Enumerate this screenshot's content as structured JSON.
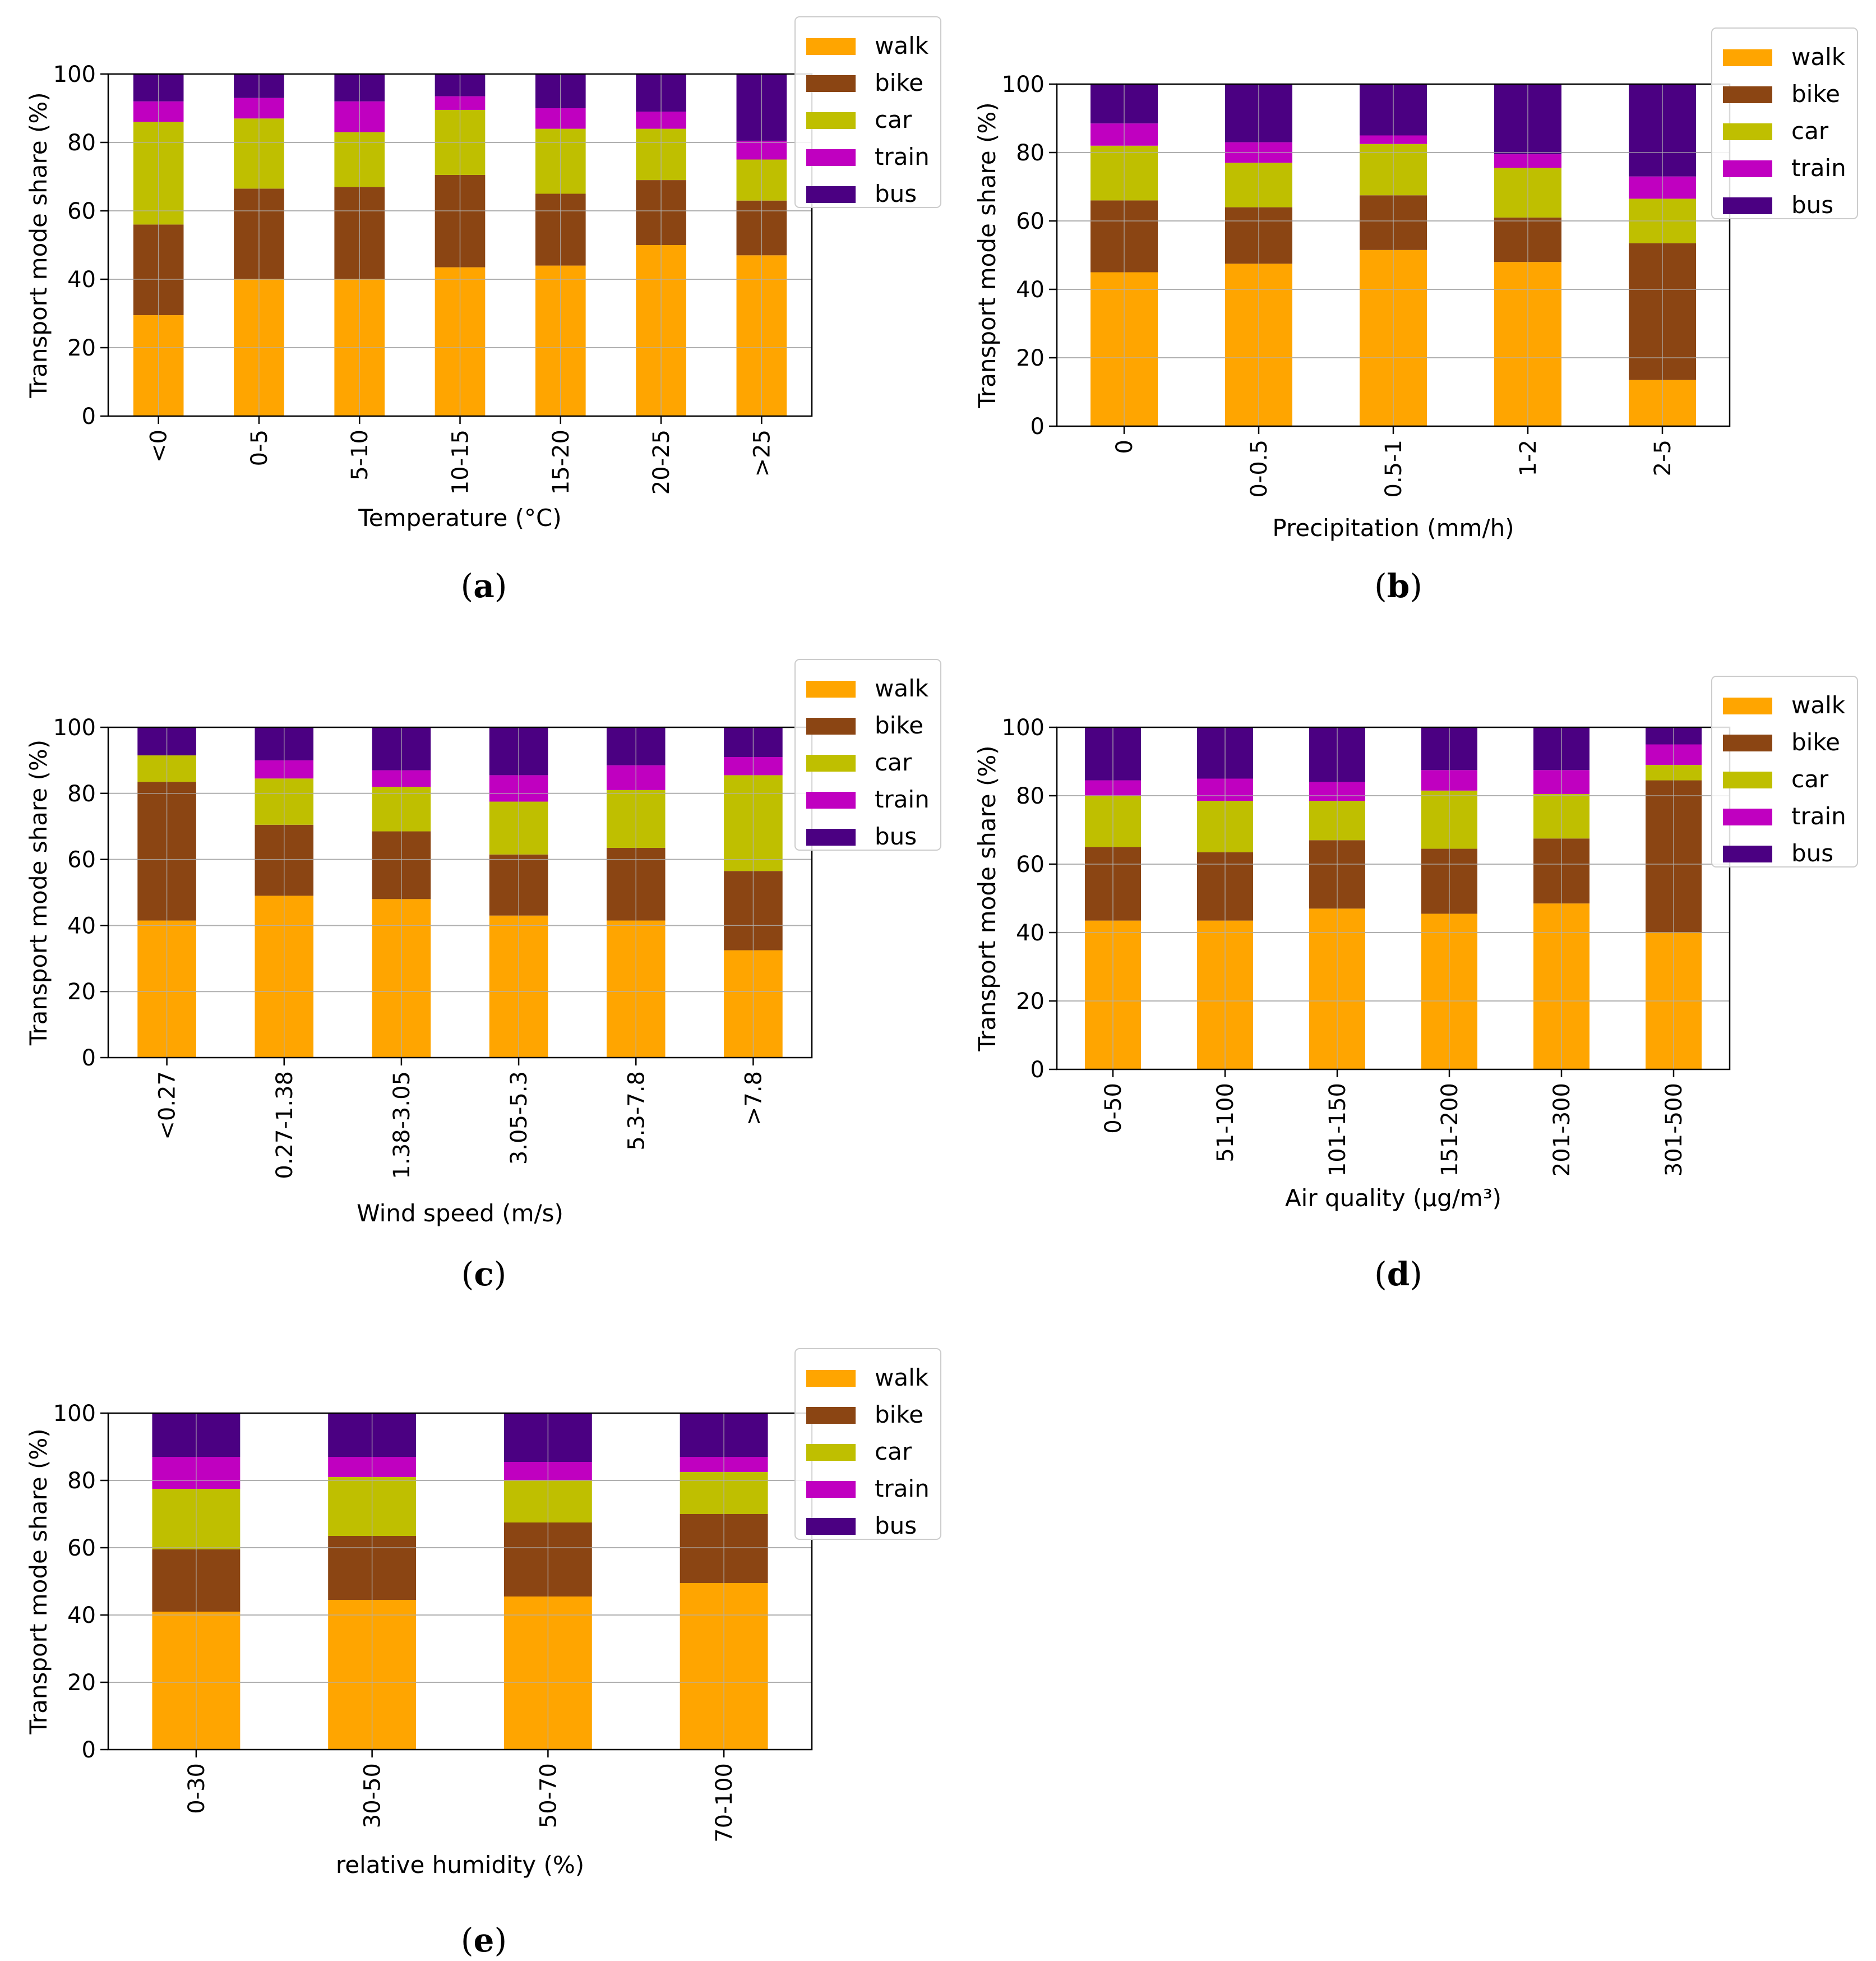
{
  "figure": {
    "modes": [
      "walk",
      "bike",
      "car",
      "train",
      "bus"
    ],
    "colors": {
      "walk": "#FFA500",
      "bike": "#8B4513",
      "car": "#BFBF00",
      "train": "#C000C0",
      "bus": "#4B0082"
    }
  },
  "chart_data": [
    {
      "id": "a",
      "caption": "a",
      "type": "bar",
      "stacked": true,
      "xlabel": "Temperature (°C)",
      "ylabel": "Transport mode share (%)",
      "ylim": [
        0,
        100
      ],
      "yticks": [
        "0",
        "20",
        "40",
        "60",
        "80",
        "100"
      ],
      "categories": [
        "<0",
        "0-5",
        "5-10",
        "10-15",
        "15-20",
        "20-25",
        ">25"
      ],
      "series": [
        {
          "name": "walk",
          "values": [
            29.5,
            40,
            40,
            43.5,
            44,
            50,
            47
          ]
        },
        {
          "name": "bike",
          "values": [
            26.5,
            26.5,
            27,
            27,
            21,
            19,
            16
          ]
        },
        {
          "name": "car",
          "values": [
            30,
            20.5,
            16,
            19,
            19,
            15,
            12
          ]
        },
        {
          "name": "train",
          "values": [
            6,
            6,
            9,
            4,
            6,
            5,
            5.5
          ]
        },
        {
          "name": "bus",
          "values": [
            8,
            7,
            8,
            6.5,
            10,
            11,
            19.5
          ]
        }
      ],
      "legend": "outside-right-top"
    },
    {
      "id": "b",
      "caption": "b",
      "type": "bar",
      "stacked": true,
      "xlabel": "Precipitation (mm/h)",
      "ylabel": "Transport mode share (%)",
      "ylim": [
        0,
        100
      ],
      "yticks": [
        "0",
        "20",
        "40",
        "60",
        "80",
        "100"
      ],
      "categories": [
        "0",
        "0-0.5",
        "0.5-1",
        "1-2",
        "2-5"
      ],
      "series": [
        {
          "name": "walk",
          "values": [
            45,
            47.5,
            51.5,
            48,
            13.5
          ]
        },
        {
          "name": "bike",
          "values": [
            21,
            16.5,
            16,
            13,
            40
          ]
        },
        {
          "name": "car",
          "values": [
            16,
            13,
            15,
            14.5,
            13
          ]
        },
        {
          "name": "train",
          "values": [
            6.5,
            6,
            2.5,
            4,
            6.5
          ]
        },
        {
          "name": "bus",
          "values": [
            11.5,
            17,
            15,
            20.5,
            27
          ]
        }
      ],
      "legend": "outside-right-top"
    },
    {
      "id": "c",
      "caption": "c",
      "type": "bar",
      "stacked": true,
      "xlabel": "Wind speed (m/s)",
      "ylabel": "Transport mode share (%)",
      "ylim": [
        0,
        100
      ],
      "yticks": [
        "0",
        "20",
        "40",
        "60",
        "80",
        "100"
      ],
      "categories": [
        "<0.27",
        "0.27-1.38",
        "1.38-3.05",
        "3.05-5.3",
        "5.3-7.8",
        ">7.8"
      ],
      "series": [
        {
          "name": "walk",
          "values": [
            41.5,
            49,
            48,
            43,
            41.5,
            32.5
          ]
        },
        {
          "name": "bike",
          "values": [
            42,
            21.5,
            20.5,
            18.5,
            22,
            24
          ]
        },
        {
          "name": "car",
          "values": [
            8,
            14,
            13.5,
            16,
            17.5,
            29
          ]
        },
        {
          "name": "train",
          "values": [
            0,
            5.5,
            5,
            8,
            7.5,
            5.5
          ]
        },
        {
          "name": "bus",
          "values": [
            8.5,
            10,
            13,
            14.5,
            11.5,
            9
          ]
        }
      ],
      "legend": "outside-right-top"
    },
    {
      "id": "d",
      "caption": "d",
      "type": "bar",
      "stacked": true,
      "xlabel": "Air quality  (μg/m³)",
      "ylabel": "Transport mode share (%)",
      "ylim": [
        0,
        100
      ],
      "yticks": [
        "0",
        "20",
        "40",
        "60",
        "80",
        "100"
      ],
      "categories": [
        "0-50",
        "51-100",
        "101-150",
        "151-200",
        "201-300",
        "301-500"
      ],
      "series": [
        {
          "name": "walk",
          "values": [
            43.5,
            43.5,
            47,
            45.5,
            48.5,
            40
          ]
        },
        {
          "name": "bike",
          "values": [
            21.5,
            20,
            20,
            19,
            19,
            44.5
          ]
        },
        {
          "name": "car",
          "values": [
            15,
            15,
            11.5,
            17,
            13,
            4.5
          ]
        },
        {
          "name": "train",
          "values": [
            4.5,
            6.5,
            5.5,
            6,
            7,
            6
          ]
        },
        {
          "name": "bus",
          "values": [
            15.5,
            15,
            16,
            12.5,
            12.5,
            5
          ]
        }
      ],
      "legend": "outside-right-top"
    },
    {
      "id": "e",
      "caption": "e",
      "type": "bar",
      "stacked": true,
      "xlabel": "relative humidity (%)",
      "ylabel": "Transport mode share (%)",
      "ylim": [
        0,
        100
      ],
      "yticks": [
        "0",
        "20",
        "40",
        "60",
        "80",
        "100"
      ],
      "categories": [
        "0-30",
        "30-50",
        "50-70",
        "70-100"
      ],
      "series": [
        {
          "name": "walk",
          "values": [
            41,
            44.5,
            45.5,
            49.5
          ]
        },
        {
          "name": "bike",
          "values": [
            18.5,
            19,
            22,
            20.5
          ]
        },
        {
          "name": "car",
          "values": [
            18,
            17.5,
            12.5,
            12.5
          ]
        },
        {
          "name": "train",
          "values": [
            9.5,
            6,
            5.5,
            4.5
          ]
        },
        {
          "name": "bus",
          "values": [
            13,
            13,
            14.5,
            13
          ]
        }
      ],
      "legend": "outside-right-top"
    }
  ]
}
